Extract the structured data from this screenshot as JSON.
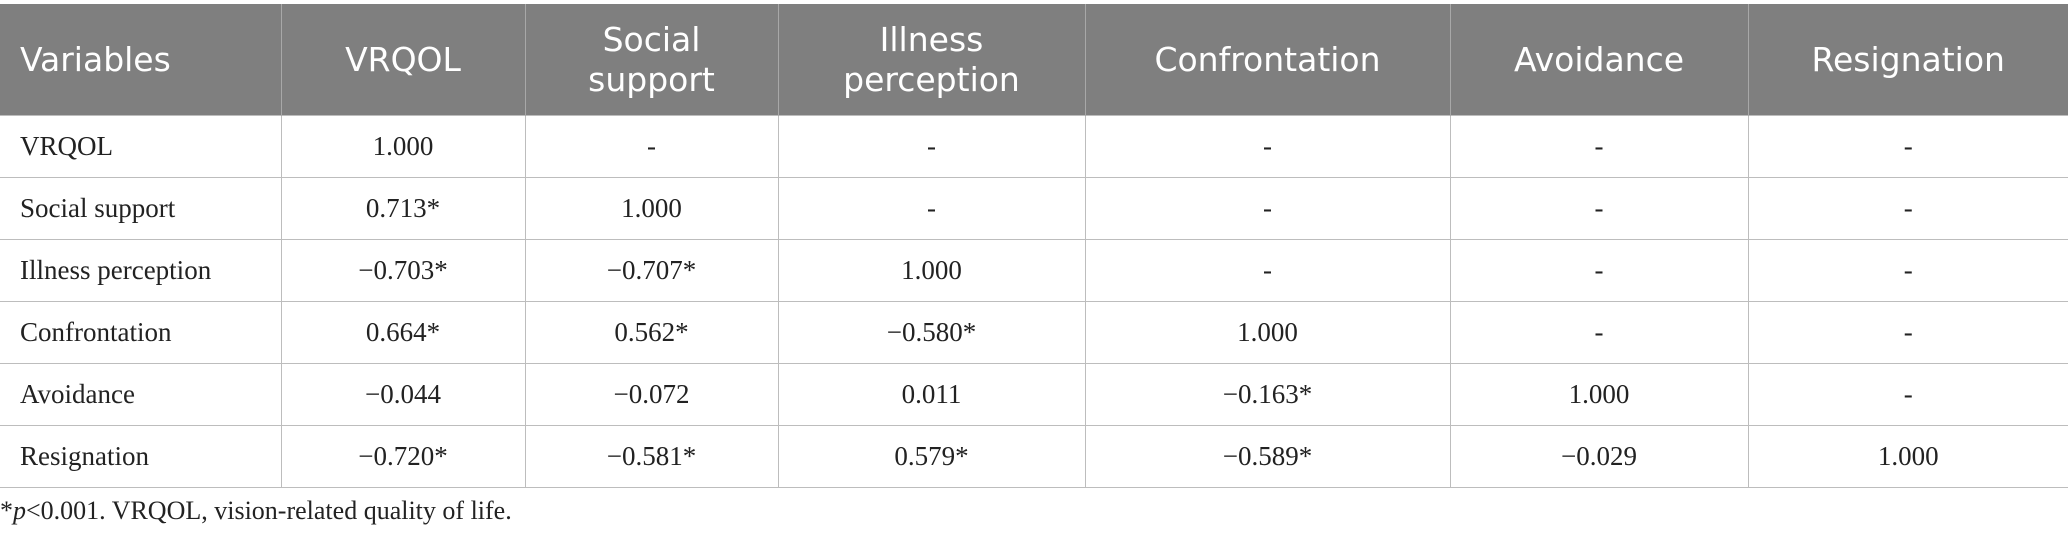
{
  "table": {
    "header": [
      "Variables",
      "VRQOL",
      "Social support",
      "Illness perception",
      "Confrontation",
      "Avoidance",
      "Resignation"
    ],
    "rows": [
      [
        "VRQOL",
        "1.000",
        "-",
        "-",
        "-",
        "-",
        "-"
      ],
      [
        "Social support",
        "0.713*",
        "1.000",
        "-",
        "-",
        "-",
        "-"
      ],
      [
        "Illness perception",
        "−0.703*",
        "−0.707*",
        "1.000",
        "-",
        "-",
        "-"
      ],
      [
        "Confrontation",
        "0.664*",
        "0.562*",
        "−0.580*",
        "1.000",
        "-",
        "-"
      ],
      [
        "Avoidance",
        "−0.044",
        "−0.072",
        "0.011",
        "−0.163*",
        "1.000",
        "-"
      ],
      [
        "Resignation",
        "−0.720*",
        "−0.581*",
        "0.579*",
        "−0.589*",
        "−0.029",
        "1.000"
      ]
    ]
  },
  "footnote": [
    "*",
    "p",
    "<0.001. VRQOL, vision-related quality of life."
  ]
}
